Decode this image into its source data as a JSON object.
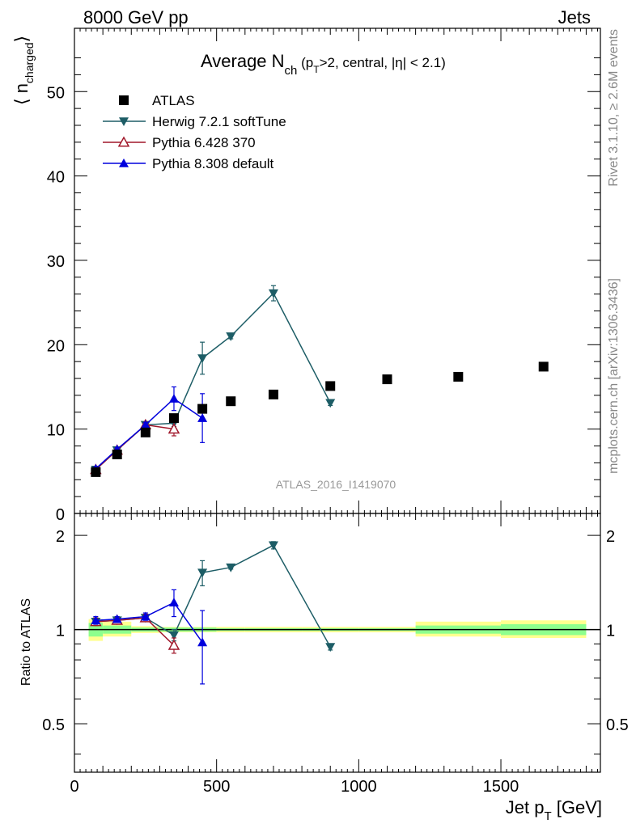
{
  "header": {
    "left": "8000 GeV pp",
    "right": "Jets"
  },
  "side_text": {
    "top": "Rivet 3.1.10, ≥ 2.6M events",
    "bottom": "mcplots.cern.ch [arXiv:1306.3436]"
  },
  "watermark": "ATLAS_2016_I1419070",
  "chart_data": [
    {
      "type": "scatter",
      "title": {
        "main": "Average N",
        "sub": "ch",
        "rest_a": " (p",
        "rest_sub": "T",
        "rest_b": ">2, central, |η| < 2.1)"
      },
      "ylabel": {
        "main": "⟨ n",
        "sub": "charged",
        "close": "⟩"
      },
      "xlim": [
        0,
        1850
      ],
      "ylim": [
        0,
        57.5
      ],
      "yticks": [
        0,
        10,
        20,
        30,
        40,
        50
      ],
      "ytick_labels": [
        "0",
        "10",
        "20",
        "30",
        "40",
        "50"
      ],
      "legend": {
        "placement": "top-left"
      },
      "series": [
        {
          "name": "ATLAS",
          "color": "#000000",
          "marker": "square",
          "line": false,
          "x": [
            75,
            150,
            250,
            350,
            450,
            550,
            700,
            900,
            1100,
            1350,
            1650
          ],
          "y": [
            4.9,
            7.0,
            9.6,
            11.3,
            12.4,
            13.3,
            14.1,
            15.1,
            15.9,
            16.2,
            17.4
          ]
        },
        {
          "name": "Herwig 7.2.1 softTune",
          "color": "#1d5d66",
          "marker": "triangle-down",
          "line": true,
          "x": [
            75,
            150,
            250,
            350,
            450,
            550,
            700,
            900
          ],
          "y": [
            5.2,
            7.5,
            10.5,
            10.7,
            18.4,
            21.0,
            26.1,
            13.1
          ],
          "err": [
            0.2,
            0.2,
            0.3,
            0.4,
            1.9,
            0.3,
            0.9,
            0.3
          ]
        },
        {
          "name": "Pythia 6.428 370",
          "color": "#a0172a",
          "marker": "triangle-open",
          "line": true,
          "x": [
            75,
            150,
            250,
            350
          ],
          "y": [
            5.2,
            7.5,
            10.5,
            10.0
          ],
          "err": [
            0.2,
            0.2,
            0.3,
            0.8
          ]
        },
        {
          "name": "Pythia 8.308 default",
          "color": "#0000dd",
          "marker": "triangle-up",
          "line": true,
          "x": [
            75,
            150,
            250,
            350,
            450
          ],
          "y": [
            5.3,
            7.6,
            10.5,
            13.6,
            11.3
          ],
          "err": [
            0.2,
            0.2,
            0.3,
            1.4,
            2.9
          ]
        }
      ]
    },
    {
      "type": "scatter",
      "ylabel": "Ratio to ATLAS",
      "xlabel": {
        "main": "Jet p",
        "sub": "T",
        "rest": " [GeV]"
      },
      "xlim": [
        0,
        1850
      ],
      "ylim": [
        0.35,
        2.35
      ],
      "log_y": true,
      "xticks": [
        0,
        500,
        1000,
        1500
      ],
      "xtick_labels": [
        "0",
        "500",
        "1000",
        "1500"
      ],
      "yticks": [
        0.5,
        1,
        2
      ],
      "ytick_labels": [
        "0.5",
        "1",
        "2"
      ],
      "uncertainty_bands": {
        "x_edges": [
          50,
          100,
          200,
          300,
          400,
          500,
          600,
          800,
          1000,
          1200,
          1500,
          1800
        ],
        "stat_low": [
          0.95,
          0.97,
          0.985,
          0.985,
          0.985,
          0.99,
          0.99,
          0.99,
          0.99,
          0.97,
          0.96
        ],
        "stat_high": [
          1.05,
          1.03,
          1.015,
          1.015,
          1.015,
          1.01,
          1.01,
          1.01,
          1.01,
          1.03,
          1.04
        ],
        "total_low": [
          0.92,
          0.95,
          0.975,
          0.98,
          0.98,
          0.98,
          0.98,
          0.98,
          0.98,
          0.95,
          0.94
        ],
        "total_high": [
          1.08,
          1.06,
          1.025,
          1.02,
          1.02,
          1.02,
          1.02,
          1.02,
          1.02,
          1.06,
          1.07
        ],
        "stat_color": "#8dff8d",
        "total_color": "#ffff8f"
      },
      "series": [
        {
          "name": "Herwig 7.2.1 softTune",
          "color": "#1d5d66",
          "marker": "triangle-down",
          "x": [
            75,
            150,
            250,
            350,
            450,
            550,
            700,
            900
          ],
          "y": [
            1.06,
            1.07,
            1.09,
            0.96,
            1.52,
            1.58,
            1.86,
            0.88
          ],
          "err": [
            0.03,
            0.02,
            0.03,
            0.04,
            0.14,
            0.02,
            0.05,
            0.02
          ]
        },
        {
          "name": "Pythia 6.428 370",
          "color": "#a0172a",
          "marker": "triangle-open",
          "x": [
            75,
            150,
            250,
            350
          ],
          "y": [
            1.06,
            1.07,
            1.09,
            0.89
          ],
          "err": [
            0.03,
            0.02,
            0.03,
            0.05
          ]
        },
        {
          "name": "Pythia 8.308 default",
          "color": "#0000dd",
          "marker": "triangle-up",
          "x": [
            75,
            150,
            250,
            350,
            450
          ],
          "y": [
            1.07,
            1.08,
            1.1,
            1.22,
            0.91
          ],
          "err": [
            0.03,
            0.02,
            0.03,
            0.12,
            0.24
          ]
        }
      ]
    }
  ]
}
